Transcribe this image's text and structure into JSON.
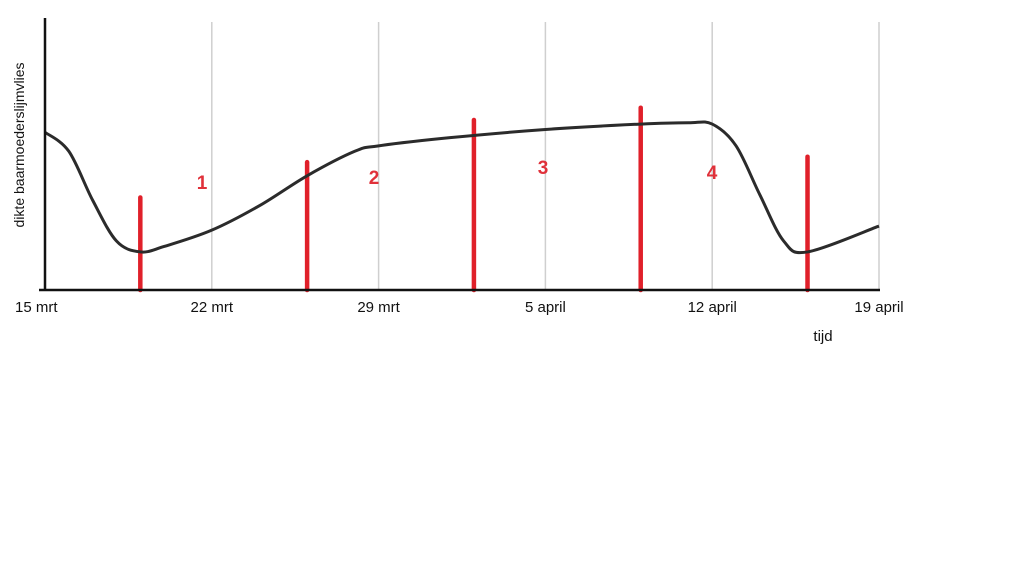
{
  "chart_data": {
    "type": "line",
    "title": "",
    "xlabel": "tijd",
    "ylabel": "dikte baarmoederslijmvlies",
    "x_ticks": [
      "15 mrt",
      "22 mrt",
      "29 mrt",
      "5 april",
      "12 april",
      "19 april"
    ],
    "xlim": [
      "15 mrt",
      "19 april"
    ],
    "ylim": [
      0,
      1
    ],
    "y_scale_note": "",
    "grid": "vertical",
    "series": [
      {
        "color": "#2b2b2b",
        "points": [
          {
            "x": "15 mrt",
            "y": 0.58
          },
          {
            "x": "16 mrt",
            "y": 0.51
          },
          {
            "x": "17 mrt",
            "y": 0.33
          },
          {
            "x": "18 mrt",
            "y": 0.18
          },
          {
            "x": "19 mrt",
            "y": 0.14
          },
          {
            "x": "20 mrt",
            "y": 0.16
          },
          {
            "x": "22 mrt",
            "y": 0.22
          },
          {
            "x": "24 mrt",
            "y": 0.31
          },
          {
            "x": "26 mrt",
            "y": 0.42
          },
          {
            "x": "28 mrt",
            "y": 0.51
          },
          {
            "x": "29 mrt",
            "y": 0.53
          },
          {
            "x": "1 april",
            "y": 0.56
          },
          {
            "x": "5 april",
            "y": 0.59
          },
          {
            "x": "9 april",
            "y": 0.61
          },
          {
            "x": "11 april",
            "y": 0.615
          },
          {
            "x": "12 april",
            "y": 0.61
          },
          {
            "x": "13 april",
            "y": 0.53
          },
          {
            "x": "14 april",
            "y": 0.35
          },
          {
            "x": "15 april",
            "y": 0.18
          },
          {
            "x": "16 april",
            "y": 0.14
          },
          {
            "x": "19 april",
            "y": 0.235
          }
        ]
      }
    ],
    "markers": {
      "color": "#e0202a",
      "lines": [
        {
          "x": "19 mrt",
          "height": 0.34
        },
        {
          "x": "26 mrt",
          "height": 0.47
        },
        {
          "x": "2 april",
          "height": 0.625
        },
        {
          "x": "9 april",
          "height": 0.67
        },
        {
          "x": "16 april",
          "height": 0.49
        }
      ]
    },
    "annotations": [
      {
        "text": "1",
        "x": "22 mrt"
      },
      {
        "text": "2",
        "x": "29 mrt"
      },
      {
        "text": "3",
        "x": "5 april"
      },
      {
        "text": "4",
        "x": "12 april"
      }
    ],
    "annotation_color": "#e0313a"
  }
}
